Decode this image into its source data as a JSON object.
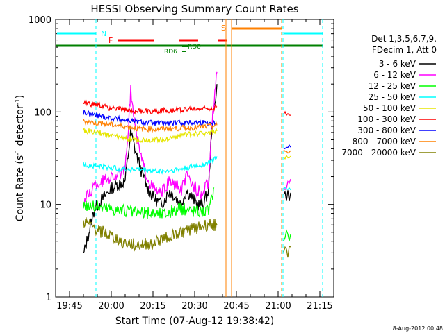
{
  "chart_data": {
    "type": "line",
    "title": "HESSI Observing Summary Count Rates",
    "xlabel": "Start Time (07-Aug-12 19:38:42)",
    "ylabel_main": "Count Rate (s",
    "ylabel_sup1": "-1",
    "ylabel_mid": " detector",
    "ylabel_sup2": "-1",
    "ylabel_end": ")",
    "yscale": "log",
    "ylim": [
      1,
      1000
    ],
    "xlim_minutes": [
      -5,
      95
    ],
    "x_ticks": [
      {
        "label": "19:45",
        "min": 0
      },
      {
        "label": "20:00",
        "min": 15
      },
      {
        "label": "20:15",
        "min": 30
      },
      {
        "label": "20:30",
        "min": 45
      },
      {
        "label": "20:45",
        "min": 60
      },
      {
        "label": "21:00",
        "min": 75
      },
      {
        "label": "21:15",
        "min": 90
      }
    ],
    "y_ticks": [
      {
        "label": "1",
        "value": 1
      },
      {
        "label": "10",
        "value": 10
      },
      {
        "label": "100",
        "value": 100
      },
      {
        "label": "1000",
        "value": 1000
      }
    ],
    "legend_header": [
      "Det 1,3,5,6,7,9,",
      "FDecim 1, Att 0"
    ],
    "series": [
      {
        "name": "3 - 6 keV",
        "color": "#000000",
        "values": [
          [
            5,
            2.8
          ],
          [
            9,
            9
          ],
          [
            15,
            15
          ],
          [
            20,
            18
          ],
          [
            22,
            60
          ],
          [
            24,
            35
          ],
          [
            26,
            22
          ],
          [
            28,
            15
          ],
          [
            30,
            12
          ],
          [
            33,
            10
          ],
          [
            36,
            14
          ],
          [
            38,
            12
          ],
          [
            40,
            10
          ],
          [
            42,
            14
          ],
          [
            44,
            12
          ],
          [
            46,
            10
          ],
          [
            48,
            10
          ],
          [
            50,
            14
          ],
          [
            51,
            60
          ],
          [
            53,
            200
          ]
        ]
      },
      {
        "name": "6 - 12 keV",
        "color": "#ff00ff",
        "values": [
          [
            5,
            10.5
          ],
          [
            9,
            16
          ],
          [
            15,
            20
          ],
          [
            20,
            22
          ],
          [
            22,
            170
          ],
          [
            24,
            55
          ],
          [
            26,
            30
          ],
          [
            28,
            20
          ],
          [
            30,
            15
          ],
          [
            33,
            13
          ],
          [
            36,
            18
          ],
          [
            38,
            16
          ],
          [
            40,
            14
          ],
          [
            42,
            20
          ],
          [
            44,
            17
          ],
          [
            46,
            14
          ],
          [
            48,
            13
          ],
          [
            50,
            18
          ],
          [
            51,
            60
          ],
          [
            53,
            270
          ]
        ]
      },
      {
        "name": "12 - 25 keV",
        "color": "#00ff00",
        "values": [
          [
            5,
            10
          ],
          [
            9,
            9.5
          ],
          [
            15,
            9
          ],
          [
            20,
            8.5
          ],
          [
            25,
            8
          ],
          [
            30,
            8
          ],
          [
            35,
            8
          ],
          [
            40,
            9
          ],
          [
            45,
            8.5
          ],
          [
            50,
            8.5
          ],
          [
            52,
            15
          ]
        ]
      },
      {
        "name": "25 - 50 keV",
        "color": "#00ffff",
        "values": [
          [
            5,
            27
          ],
          [
            10,
            26
          ],
          [
            15,
            25
          ],
          [
            20,
            24
          ],
          [
            25,
            24
          ],
          [
            30,
            23
          ],
          [
            35,
            23
          ],
          [
            40,
            24
          ],
          [
            45,
            26
          ],
          [
            50,
            28
          ],
          [
            53,
            33
          ]
        ]
      },
      {
        "name": "50 - 100 keV",
        "color": "#e6e600",
        "values": [
          [
            5,
            63
          ],
          [
            10,
            60
          ],
          [
            15,
            55
          ],
          [
            20,
            52
          ],
          [
            25,
            50
          ],
          [
            30,
            50
          ],
          [
            35,
            51
          ],
          [
            40,
            56
          ],
          [
            45,
            58
          ],
          [
            50,
            60
          ],
          [
            53,
            62
          ]
        ]
      },
      {
        "name": "100 - 300 keV",
        "color": "#ff0000",
        "values": [
          [
            5,
            125
          ],
          [
            10,
            118
          ],
          [
            15,
            110
          ],
          [
            20,
            105
          ],
          [
            25,
            102
          ],
          [
            30,
            102
          ],
          [
            35,
            104
          ],
          [
            40,
            106
          ],
          [
            45,
            108
          ],
          [
            50,
            110
          ],
          [
            53,
            113
          ]
        ]
      },
      {
        "name": "300 - 800 keV",
        "color": "#0000ff",
        "values": [
          [
            5,
            98
          ],
          [
            10,
            92
          ],
          [
            15,
            86
          ],
          [
            20,
            82
          ],
          [
            25,
            78
          ],
          [
            30,
            76
          ],
          [
            35,
            75
          ],
          [
            40,
            76
          ],
          [
            45,
            77
          ],
          [
            50,
            77
          ],
          [
            53,
            76
          ]
        ]
      },
      {
        "name": "800 - 7000 keV",
        "color": "#ff8000",
        "values": [
          [
            5,
            80
          ],
          [
            10,
            76
          ],
          [
            15,
            73
          ],
          [
            20,
            70
          ],
          [
            25,
            66
          ],
          [
            30,
            65
          ],
          [
            35,
            66
          ],
          [
            40,
            67
          ],
          [
            45,
            68
          ],
          [
            50,
            70
          ],
          [
            53,
            72
          ]
        ]
      },
      {
        "name": "7000 - 20000 keV",
        "color": "#808000",
        "values": [
          [
            5,
            6.5
          ],
          [
            9,
            5.5
          ],
          [
            15,
            4.5
          ],
          [
            20,
            3.8
          ],
          [
            25,
            3.6
          ],
          [
            30,
            3.8
          ],
          [
            35,
            4.5
          ],
          [
            40,
            5
          ],
          [
            45,
            5.5
          ],
          [
            50,
            6
          ],
          [
            53,
            6
          ]
        ]
      }
    ],
    "annotations": [
      {
        "text": "N",
        "color": "#00ffff"
      },
      {
        "text": "F",
        "color": "#ff0000"
      },
      {
        "text": "S",
        "color": "#ff8000"
      },
      {
        "text": "RD0",
        "color": "#008000"
      },
      {
        "text": "RD6",
        "color": "#008000"
      }
    ],
    "footer_date": "8-Aug-2012 00:48"
  }
}
